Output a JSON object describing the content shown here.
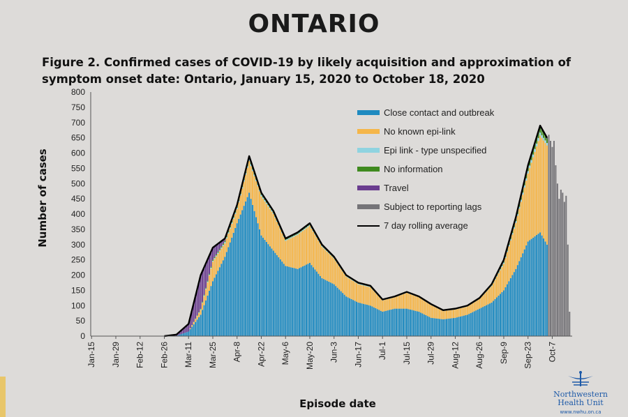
{
  "header": {
    "title": "ONTARIO",
    "caption": "Figure 2. Confirmed cases of COVID-19 by likely acquisition and approximation of symptom onset date: Ontario, January 15, 2020 to October 18, 2020"
  },
  "logo": {
    "name": "Northwestern Health Unit",
    "url": "www.nwhu.on.ca"
  },
  "chart_data": {
    "type": "bar",
    "stacked": true,
    "title": "Figure 2. Confirmed cases of COVID-19 by likely acquisition and approximation of symptom onset date: Ontario, January 15, 2020 to October 18, 2020",
    "xlabel": "Episode date",
    "ylabel": "Number of cases",
    "ylim": [
      0,
      800
    ],
    "yticks": [
      0,
      50,
      100,
      150,
      200,
      250,
      300,
      350,
      400,
      450,
      500,
      550,
      600,
      650,
      700,
      750,
      800
    ],
    "xlim": [
      "2020-01-15",
      "2020-10-18"
    ],
    "xticks": [
      "Jan-15",
      "Jan-29",
      "Feb-12",
      "Feb-26",
      "Mar-11",
      "Mar-25",
      "Apr-8",
      "Apr-22",
      "May-6",
      "May-20",
      "Jun-3",
      "Jun-17",
      "Jul-1",
      "Jul-15",
      "Jul-29",
      "Aug-12",
      "Aug-26",
      "Sep-9",
      "Sep-23",
      "Oct-7"
    ],
    "legend_position": "top-right",
    "grid": false,
    "dates": [
      "2020-02-26",
      "2020-03-04",
      "2020-03-11",
      "2020-03-18",
      "2020-03-25",
      "2020-04-01",
      "2020-04-08",
      "2020-04-15",
      "2020-04-22",
      "2020-04-29",
      "2020-05-06",
      "2020-05-13",
      "2020-05-20",
      "2020-05-27",
      "2020-06-03",
      "2020-06-10",
      "2020-06-17",
      "2020-06-24",
      "2020-07-01",
      "2020-07-08",
      "2020-07-15",
      "2020-07-22",
      "2020-07-29",
      "2020-08-05",
      "2020-08-12",
      "2020-08-19",
      "2020-08-26",
      "2020-09-02",
      "2020-09-09",
      "2020-09-16",
      "2020-09-23",
      "2020-09-30",
      "2020-10-04"
    ],
    "series": [
      {
        "name": "Close contact and outbreak",
        "color": "#1f8ac0",
        "values": [
          0,
          1,
          15,
          70,
          180,
          260,
          370,
          470,
          330,
          280,
          230,
          220,
          240,
          190,
          170,
          130,
          110,
          100,
          80,
          90,
          90,
          80,
          60,
          55,
          60,
          70,
          90,
          110,
          150,
          220,
          310,
          340,
          300
        ]
      },
      {
        "name": "No known epi-link",
        "color": "#f5b64a",
        "values": [
          0,
          0,
          0,
          16,
          64,
          44,
          46,
          104,
          128,
          120,
          82,
          112,
          122,
          103,
          84,
          65,
          60,
          60,
          37,
          37,
          52,
          47,
          42,
          27,
          27,
          27,
          32,
          54,
          87,
          151,
          223,
          317,
          325
        ]
      },
      {
        "name": "Epi link - type unspecified",
        "color": "#8fd3e0",
        "values": [
          0,
          0,
          0,
          2,
          3,
          4,
          5,
          6,
          5,
          4,
          3,
          3,
          3,
          3,
          2,
          2,
          2,
          2,
          1,
          1,
          1,
          1,
          1,
          1,
          1,
          1,
          1,
          2,
          4,
          6,
          8,
          10,
          8
        ]
      },
      {
        "name": "No information",
        "color": "#3f8a1f",
        "values": [
          0,
          0,
          0,
          2,
          3,
          4,
          6,
          8,
          6,
          5,
          4,
          4,
          4,
          3,
          3,
          2,
          2,
          2,
          1,
          1,
          1,
          1,
          1,
          1,
          1,
          1,
          1,
          2,
          4,
          8,
          14,
          20,
          15
        ]
      },
      {
        "name": "Travel",
        "color": "#6a3d8f",
        "values": [
          0,
          4,
          25,
          110,
          40,
          8,
          3,
          2,
          1,
          1,
          1,
          1,
          1,
          1,
          1,
          1,
          1,
          1,
          1,
          1,
          1,
          1,
          1,
          1,
          1,
          1,
          1,
          2,
          5,
          5,
          5,
          3,
          2
        ]
      }
    ],
    "reporting_lags": {
      "name": "Subject to reporting lags",
      "color": "#757478",
      "dates": [
        "2020-10-05",
        "2020-10-06",
        "2020-10-07",
        "2020-10-08",
        "2020-10-09",
        "2020-10-10",
        "2020-10-11",
        "2020-10-12",
        "2020-10-13",
        "2020-10-14",
        "2020-10-15",
        "2020-10-16",
        "2020-10-17"
      ],
      "values": [
        660,
        640,
        620,
        640,
        560,
        500,
        450,
        480,
        470,
        440,
        460,
        300,
        80
      ]
    },
    "rolling_average": {
      "name": "7 day rolling average",
      "color": "#000000",
      "values": [
        0,
        5,
        40,
        200,
        290,
        320,
        430,
        590,
        470,
        410,
        320,
        340,
        370,
        300,
        260,
        200,
        175,
        165,
        120,
        130,
        145,
        130,
        105,
        85,
        90,
        100,
        125,
        170,
        250,
        390,
        560,
        690,
        650
      ]
    }
  }
}
